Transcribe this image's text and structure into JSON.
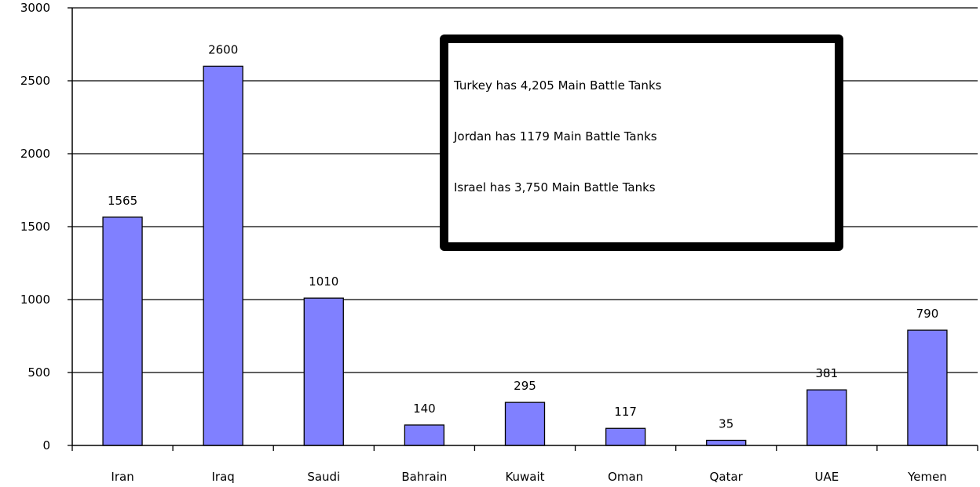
{
  "chart_data": {
    "type": "bar",
    "categories": [
      "Iran",
      "Iraq",
      "Saudi",
      "Bahrain",
      "Kuwait",
      "Oman",
      "Qatar",
      "UAE",
      "Yemen"
    ],
    "values": [
      1565,
      2600,
      1010,
      140,
      295,
      117,
      35,
      381,
      790
    ],
    "data_labels": [
      "1565",
      "2600",
      "1010",
      "140",
      "295",
      "117",
      "35",
      "381",
      "790"
    ],
    "yticks": [
      0,
      500,
      1000,
      1500,
      2000,
      2500,
      3000
    ],
    "ylim": [
      0,
      3000
    ],
    "grid": true,
    "bar_color": "#8080ff",
    "annotations": [
      "Turkey has 4,205 Main Battle Tanks",
      "Jordan has 1179 Main Battle Tanks",
      "Israel has 3,750 Main Battle Tanks"
    ]
  }
}
